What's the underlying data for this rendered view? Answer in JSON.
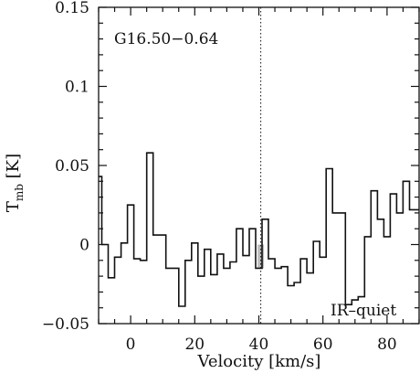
{
  "chart_data": {
    "type": "line",
    "step": true,
    "xlabel": "Velocity [km/s]",
    "ylabel_main": "T",
    "ylabel_sub": "mb",
    "ylabel_unit": "[K]",
    "xlim": [
      -10,
      90
    ],
    "ylim": [
      -0.05,
      0.15
    ],
    "xticks": [
      0,
      20,
      40,
      60,
      80
    ],
    "yticks": [
      -0.05,
      0,
      0.05,
      0.1,
      0.15
    ],
    "ytick_labels": [
      "−0.05",
      "0",
      "0.05",
      "0.1",
      "0.15"
    ],
    "xtick_labels": [
      "0",
      "20",
      "40",
      "60",
      "80"
    ],
    "source_label": "G16.50−0.64",
    "status_label": "IR–quiet",
    "vline_x": 40.6,
    "highlight": {
      "x0": 39.6,
      "x1": 41.6,
      "color": "#bdbdbd"
    },
    "series": [
      {
        "x": [
          -10,
          -8,
          -6,
          -4,
          -2,
          0,
          2,
          4,
          6,
          8,
          10,
          12,
          14,
          16,
          18,
          20,
          22,
          24,
          26,
          28,
          30,
          32,
          34,
          36,
          38,
          40,
          42,
          44,
          46,
          48,
          50,
          52,
          54,
          56,
          58,
          60,
          62,
          64,
          66,
          68,
          70,
          72,
          74,
          76,
          78,
          80,
          82,
          84,
          86,
          88
        ],
        "values": [
          0.043,
          0.0,
          -0.021,
          -0.008,
          0.001,
          0.025,
          -0.009,
          -0.01,
          0.058,
          0.006,
          0.006,
          -0.015,
          -0.015,
          -0.039,
          -0.01,
          0.001,
          -0.02,
          -0.003,
          -0.019,
          -0.006,
          -0.015,
          -0.011,
          0.01,
          -0.007,
          0.01,
          -0.015,
          0.016,
          -0.009,
          -0.015,
          -0.014,
          -0.026,
          -0.024,
          -0.009,
          -0.018,
          0.002,
          -0.008,
          0.048,
          0.02,
          0.02,
          -0.038,
          -0.035,
          -0.033,
          0.005,
          0.034,
          0.016,
          0.005,
          0.032,
          0.02,
          0.04,
          0.022
        ]
      }
    ]
  }
}
